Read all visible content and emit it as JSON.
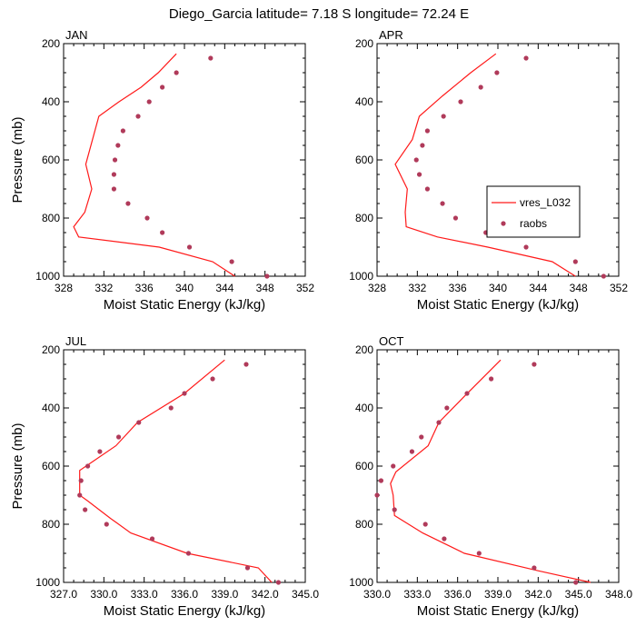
{
  "figure_title": "Diego_Garcia  latitude= 7.18 S longitude= 72.24 E",
  "colors": {
    "model_line": "#ff1a1a",
    "raobs_marker": "#b03a5a",
    "axis": "#000000"
  },
  "legend": {
    "model_label": "vres_L032",
    "obs_label": "raobs",
    "placement": "right of APR panel"
  },
  "chart_data": [
    {
      "type": "line",
      "title": "JAN",
      "xlabel": "Moist Static Energy (kJ/kg)",
      "ylabel": "Pressure (mb)",
      "xlim": [
        328,
        352
      ],
      "ylim": [
        1000,
        200
      ],
      "xticks": [
        328,
        332,
        336,
        340,
        344,
        348,
        352
      ],
      "xtick_labels": [
        "328",
        "332",
        "336",
        "340",
        "344",
        "348",
        "352"
      ],
      "yticks": [
        200,
        400,
        600,
        800,
        1000
      ],
      "ytick_labels": [
        "200",
        "400",
        "600",
        "800",
        "1000"
      ],
      "show_ylabel": true,
      "series": [
        {
          "name": "vres_L032",
          "kind": "line",
          "x": [
            345.0,
            342.8,
            337.5,
            329.5,
            329.0,
            330.1,
            330.8,
            330.2,
            331.5,
            333.5,
            335.7,
            337.4,
            339.2
          ],
          "y": [
            1000,
            950,
            900,
            865,
            830,
            780,
            700,
            615,
            450,
            400,
            350,
            300,
            235
          ]
        },
        {
          "name": "raobs",
          "kind": "scatter",
          "x": [
            348.2,
            344.7,
            340.5,
            337.8,
            336.3,
            334.4,
            333.0,
            333.0,
            333.1,
            333.4,
            333.9,
            335.4,
            336.5,
            337.8,
            339.2,
            342.6
          ],
          "y": [
            1000,
            950,
            900,
            850,
            800,
            750,
            700,
            650,
            600,
            550,
            500,
            450,
            400,
            350,
            300,
            250
          ]
        }
      ]
    },
    {
      "type": "line",
      "title": "APR",
      "xlabel": "Moist Static Energy (kJ/kg)",
      "ylabel": "",
      "xlim": [
        328,
        352
      ],
      "ylim": [
        1000,
        200
      ],
      "xticks": [
        328,
        332,
        336,
        340,
        344,
        348,
        352
      ],
      "xtick_labels": [
        "328",
        "332",
        "336",
        "340",
        "344",
        "348",
        "352"
      ],
      "yticks": [
        200,
        400,
        600,
        800,
        1000
      ],
      "ytick_labels": [
        "200",
        "400",
        "600",
        "800",
        "1000"
      ],
      "show_ylabel": false,
      "series": [
        {
          "name": "vres_L032",
          "kind": "line",
          "x": [
            347.7,
            345.4,
            339.0,
            334.0,
            330.9,
            330.8,
            331.0,
            329.8,
            331.5,
            332.2,
            334.5,
            337.3,
            339.8
          ],
          "y": [
            1000,
            950,
            900,
            865,
            830,
            780,
            700,
            615,
            530,
            450,
            380,
            300,
            235
          ]
        },
        {
          "name": "raobs",
          "kind": "scatter",
          "x": [
            350.5,
            347.7,
            342.8,
            338.8,
            335.8,
            334.5,
            333.0,
            332.2,
            331.9,
            332.5,
            333.0,
            334.6,
            336.3,
            338.3,
            339.9,
            342.8
          ],
          "y": [
            1000,
            950,
            900,
            850,
            800,
            750,
            700,
            650,
            600,
            550,
            500,
            450,
            400,
            350,
            300,
            250
          ]
        }
      ]
    },
    {
      "type": "line",
      "title": "JUL",
      "xlabel": "Moist Static Energy (kJ/kg)",
      "ylabel": "Pressure (mb)",
      "xlim": [
        327,
        345
      ],
      "ylim": [
        1000,
        200
      ],
      "xticks": [
        327,
        330,
        333,
        336,
        339,
        342,
        345
      ],
      "xtick_labels": [
        "327.0",
        "330.0",
        "333.0",
        "336.0",
        "339.0",
        "342.0",
        "345.0"
      ],
      "yticks": [
        200,
        400,
        600,
        800,
        1000
      ],
      "ytick_labels": [
        "200",
        "400",
        "600",
        "800",
        "1000"
      ],
      "show_ylabel": true,
      "series": [
        {
          "name": "vres_L032",
          "kind": "line",
          "x": [
            342.5,
            341.5,
            336.2,
            332.0,
            330.5,
            328.8,
            328.2,
            328.2,
            330.9,
            332.5,
            336.0,
            339.0
          ],
          "y": [
            1000,
            950,
            900,
            830,
            780,
            720,
            700,
            615,
            530,
            450,
            350,
            235
          ]
        },
        {
          "name": "raobs",
          "kind": "scatter",
          "x": [
            343.0,
            340.7,
            336.3,
            333.6,
            330.2,
            328.6,
            328.2,
            328.3,
            328.8,
            329.7,
            331.1,
            332.6,
            335.0,
            336.0,
            338.1,
            340.6
          ],
          "y": [
            1000,
            950,
            900,
            850,
            800,
            750,
            700,
            650,
            600,
            550,
            500,
            450,
            400,
            350,
            300,
            250
          ]
        }
      ]
    },
    {
      "type": "line",
      "title": "OCT",
      "xlabel": "Moist Static Energy (kJ/kg)",
      "ylabel": "",
      "xlim": [
        330,
        348
      ],
      "ylim": [
        1000,
        200
      ],
      "xticks": [
        330,
        333,
        336,
        339,
        342,
        345,
        348
      ],
      "xtick_labels": [
        "330.0",
        "333.0",
        "336.0",
        "339.0",
        "342.0",
        "345.0",
        "348.0"
      ],
      "yticks": [
        200,
        400,
        600,
        800,
        1000
      ],
      "ytick_labels": [
        "200",
        "400",
        "600",
        "800",
        "1000"
      ],
      "show_ylabel": false,
      "series": [
        {
          "name": "vres_L032",
          "kind": "line",
          "x": [
            345.9,
            342.0,
            336.5,
            333.4,
            331.3,
            331.2,
            331.0,
            331.4,
            333.8,
            334.6,
            336.5,
            339.2
          ],
          "y": [
            1000,
            960,
            900,
            830,
            770,
            700,
            660,
            620,
            530,
            450,
            360,
            235
          ]
        },
        {
          "name": "raobs",
          "kind": "scatter",
          "x": [
            344.8,
            341.7,
            337.6,
            335.0,
            333.6,
            331.3,
            330.0,
            330.3,
            331.2,
            332.6,
            333.3,
            334.6,
            335.2,
            336.7,
            338.5,
            341.7
          ],
          "y": [
            1000,
            950,
            900,
            850,
            800,
            750,
            700,
            650,
            600,
            550,
            500,
            450,
            400,
            350,
            300,
            250
          ]
        }
      ]
    }
  ]
}
